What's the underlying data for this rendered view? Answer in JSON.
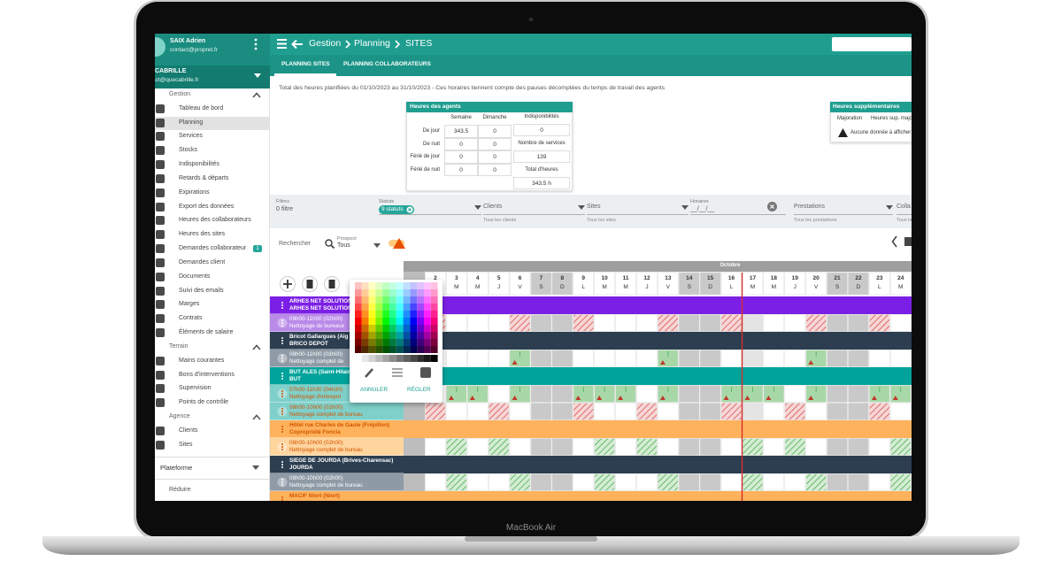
{
  "device_label": "MacBook Air",
  "user": {
    "name": "SAIX Adrien",
    "email": "contact@propret.fr"
  },
  "company": {
    "name": "CABRILLE",
    "email": "act@quecabrille.fr"
  },
  "menu": [
    {
      "section": "Gestion",
      "items": [
        "Tableau de bord",
        "Planning",
        "Services",
        "Stocks",
        "Indisponibilités",
        "Retards & départs",
        "Expirations",
        "Export des données",
        "Heures des collaborateurs",
        "Heures des sites",
        "Demandes collaborateur",
        "Demandes client",
        "Documents",
        "Suivi des emails",
        "Marges",
        "Contrats",
        "Éléments de salaire"
      ]
    },
    {
      "section": "Terrain",
      "items": [
        "Mains courantes",
        "Bons d'interventions",
        "Supervision",
        "Points de contrôle"
      ]
    },
    {
      "section": "Agence",
      "items": [
        "Clients",
        "Sites"
      ]
    }
  ],
  "menu_badge": 1,
  "platform": "Plateforme",
  "collapse": "Réduire",
  "breadcrumb": [
    "Gestion",
    "Planning",
    "SITES"
  ],
  "tabs": [
    "PLANNING SITES",
    "PLANNING COLLABORATEURS"
  ],
  "summary": "Total des heures planifiées du 01/10/2023 au 31/10/2023 - Ces horaires tiennent compte des pauses décomptées du temps de travail des agents",
  "agents": {
    "title": "Heures des agents",
    "columns": [
      "Semaine",
      "Dimanche"
    ],
    "rows": [
      {
        "label": "De jour",
        "values": [
          343.5,
          0
        ]
      },
      {
        "label": "De nuit",
        "values": [
          0,
          0
        ]
      },
      {
        "label": "Férié de jour",
        "values": [
          0,
          0
        ]
      },
      {
        "label": "Férié de nuit",
        "values": [
          0,
          0
        ]
      }
    ],
    "side": [
      {
        "label": "Indisponibilités",
        "value": 0
      },
      {
        "label": "Nombre de services",
        "value": 139
      },
      {
        "label": "Total d'heures",
        "value": "343.5 h"
      }
    ]
  },
  "overtime": {
    "title": "Heures supplémentaires",
    "columns": [
      "Majoration",
      "Heures sup. majo"
    ],
    "empty": "Aucune donnée à afficher"
  },
  "filters": [
    {
      "label": "Filtres",
      "value": "0 filtre"
    },
    {
      "label": "Statuts",
      "value": "9 statuts"
    },
    {
      "label": "Clients",
      "value": "Tous les clients"
    },
    {
      "label": "Sites",
      "value": "Tous les sites"
    },
    {
      "label": "Horaires",
      "value": "__/__/__"
    },
    {
      "label": "Prestations",
      "value": "Tous les prestations"
    },
    {
      "label": "Colla",
      "value": "Tous le"
    }
  ],
  "search": {
    "label": "Rechercher",
    "prospect_label": "Prospect",
    "prospect": "Tous"
  },
  "calendar": {
    "month": "Octobre",
    "days": [
      2,
      3,
      4,
      5,
      6,
      7,
      8,
      9,
      10,
      11,
      12,
      13,
      14,
      15,
      16,
      17,
      18,
      19,
      20,
      21,
      22,
      23,
      24
    ],
    "weekdays": [
      "L",
      "M",
      "M",
      "J",
      "V",
      "S",
      "D",
      "L",
      "M",
      "M",
      "J",
      "V",
      "S",
      "D",
      "L",
      "M",
      "M",
      "J",
      "V",
      "S",
      "D",
      "L",
      "M"
    ]
  },
  "picker": {
    "cancel": "ANNULER",
    "apply": "RÉGLER"
  },
  "rows": [
    {
      "kind": "site",
      "title": "ARHES NET SOLUTION",
      "subtitle": "ARHES NET SOLUTION",
      "color": "#7c1fe6"
    },
    {
      "kind": "service",
      "title": "09h00-11h00 (02h00)",
      "subtitle": "Nettoyage de bureaux",
      "color": "#b98ae8"
    },
    {
      "kind": "site",
      "title": "Bricot Gallargues (Aig",
      "subtitle": "BRICO DEPOT",
      "color": "#2c3e50"
    },
    {
      "kind": "service",
      "title": "08h00-11h00 (03h00)",
      "subtitle": "Nettoyage complet de",
      "color": "#8e9aa6"
    },
    {
      "kind": "site",
      "title": "BUT ALES (Saint-Hilair",
      "subtitle": "BUT",
      "color": "#00a39b"
    },
    {
      "kind": "service",
      "title": "07h00-11h30 (04h30)",
      "subtitle": "Nettoyage d'entrepot",
      "color": "#7fd0ca"
    },
    {
      "kind": "service",
      "title": "08h00-10h00 (02h00)",
      "subtitle": "Nettoyage complet de bureau",
      "color": "#7fd0ca"
    },
    {
      "kind": "site",
      "title": "Hôtel rue Charles de Gaule (Frépillon)",
      "subtitle": "Copropriété Foncia",
      "color": "#ffb25c"
    },
    {
      "kind": "service",
      "title": "08h00-10h00 (02h00)",
      "subtitle": "Nettoyage complet de bureau",
      "color": "#ffd59e"
    },
    {
      "kind": "site",
      "title": "SIEGE DE JOURDA (Brives-Charensac)",
      "subtitle": "JOURDA",
      "color": "#2c3e50"
    },
    {
      "kind": "service",
      "title": "08h00-10h00 (02h00)",
      "subtitle": "Nettoyage complet de bureau",
      "color": "#8e9aa6"
    },
    {
      "kind": "site",
      "title": "MACIF Niort (Niort)",
      "subtitle": "",
      "color": "#ffb25c"
    }
  ]
}
